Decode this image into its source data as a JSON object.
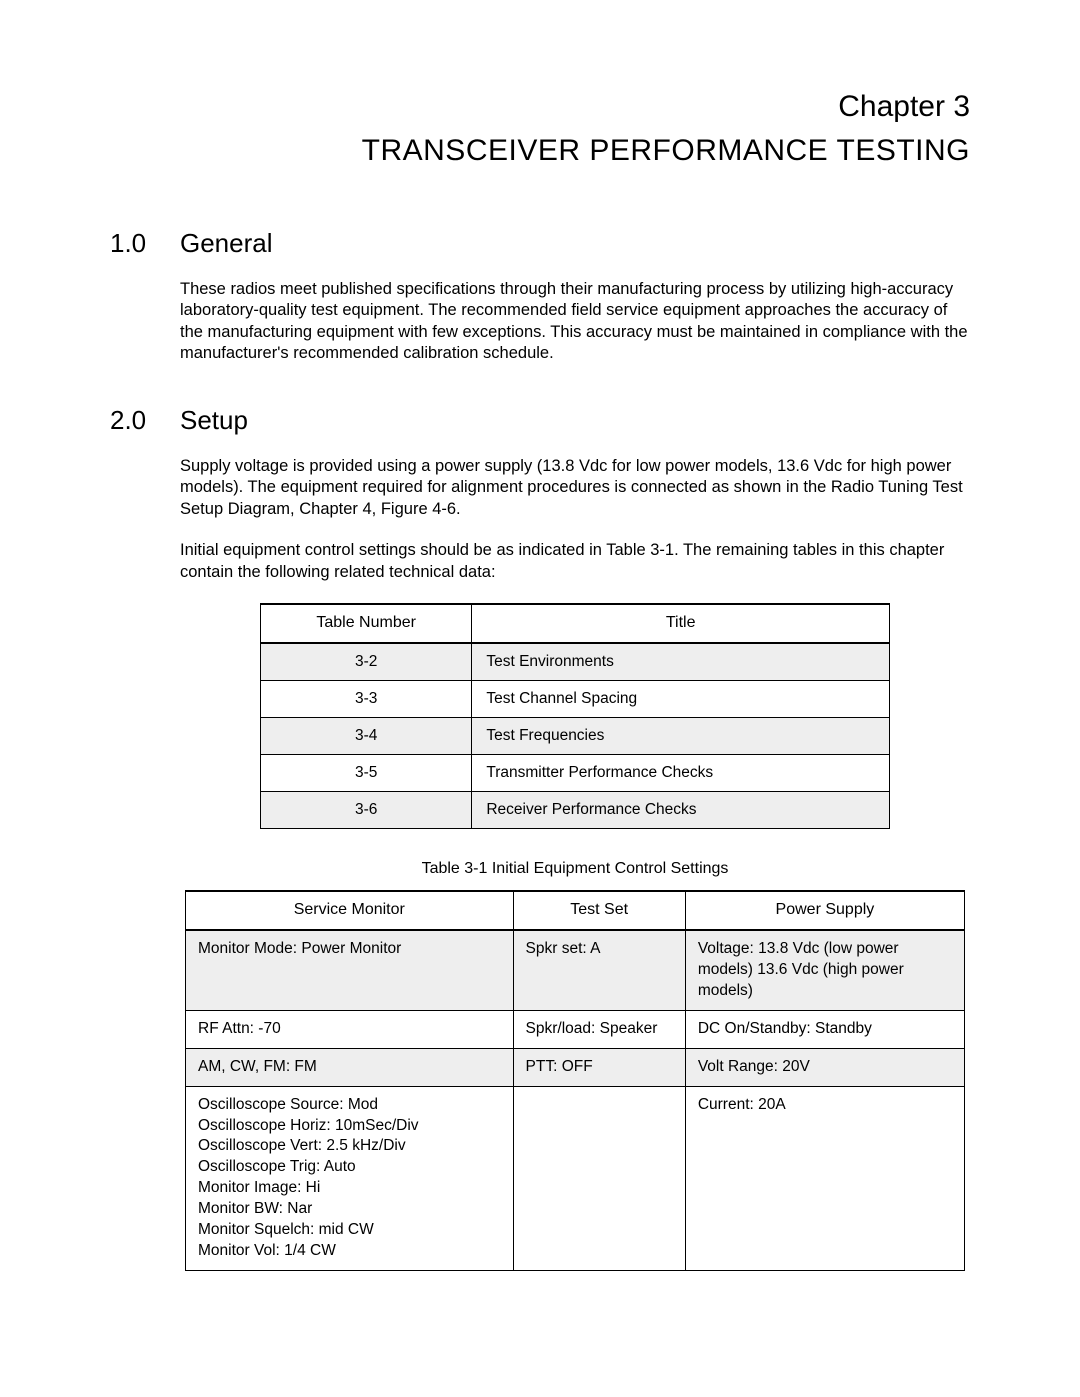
{
  "chapter": {
    "label": "Chapter 3",
    "title": "TRANSCEIVER PERFORMANCE TESTING"
  },
  "sections": {
    "general": {
      "num": "1.0",
      "title": "General",
      "para1": "These radios meet published specifications through their manufacturing process by utilizing high-accuracy laboratory-quality test equipment. The recommended field service equipment approaches the accuracy of the manufacturing equipment with few exceptions. This accuracy must be maintained in compliance with the manufacturer's recommended calibration schedule."
    },
    "setup": {
      "num": "2.0",
      "title": "Setup",
      "para1": "Supply voltage is provided using a power supply (13.8 Vdc for low power models, 13.6 Vdc for high power models). The equipment required for alignment procedures is connected as shown in the Radio Tuning Test Setup Diagram, Chapter 4, Figure 4-6.",
      "para2": "Initial equipment control settings should be as indicated in Table 3-1. The remaining tables in this chapter contain the following related technical data:"
    }
  },
  "index_table": {
    "columns": [
      "Table Number",
      "Title"
    ],
    "rows": [
      {
        "num": "3-2",
        "title": "Test Environments",
        "shade": true
      },
      {
        "num": "3-3",
        "title": "Test Channel Spacing",
        "shade": false
      },
      {
        "num": "3-4",
        "title": "Test Frequencies",
        "shade": true
      },
      {
        "num": "3-5",
        "title": "Transmitter Performance Checks",
        "shade": false
      },
      {
        "num": "3-6",
        "title": "Receiver Performance Checks",
        "shade": true
      }
    ]
  },
  "settings_table": {
    "caption": "Table 3-1   Initial Equipment Control Settings",
    "columns": [
      "Service Monitor",
      "Test Set",
      "Power Supply"
    ],
    "rows": [
      {
        "shade": true,
        "sm": [
          "Monitor Mode: Power Monitor"
        ],
        "ts": [
          "Spkr set: A"
        ],
        "ps": [
          "Voltage: 13.8 Vdc (low power models) 13.6 Vdc (high power models)"
        ]
      },
      {
        "shade": false,
        "sm": [
          "RF Attn: -70"
        ],
        "ts": [
          "Spkr/load: Speaker"
        ],
        "ps": [
          "DC On/Standby: Standby"
        ]
      },
      {
        "shade": true,
        "sm": [
          "AM, CW, FM: FM"
        ],
        "ts": [
          "PTT: OFF"
        ],
        "ps": [
          "Volt Range: 20V"
        ]
      },
      {
        "shade": false,
        "sm": [
          "Oscilloscope Source: Mod",
          "Oscilloscope Horiz: 10mSec/Div",
          "Oscilloscope Vert: 2.5 kHz/Div",
          "Oscilloscope Trig: Auto",
          "Monitor Image: Hi",
          "Monitor BW: Nar",
          "Monitor Squelch: mid CW",
          "Monitor Vol: 1/4 CW"
        ],
        "ts": [
          ""
        ],
        "ps": [
          "Current: 20A"
        ]
      }
    ]
  },
  "colors": {
    "background": "#ffffff",
    "text": "#000000",
    "shade": "#eeeeee",
    "border": "#000000"
  },
  "typography": {
    "chapter_fontsize": 30,
    "section_heading_fontsize": 26,
    "body_fontsize": 16.5,
    "table_fontsize": 15.5,
    "font_family": "Arial"
  }
}
